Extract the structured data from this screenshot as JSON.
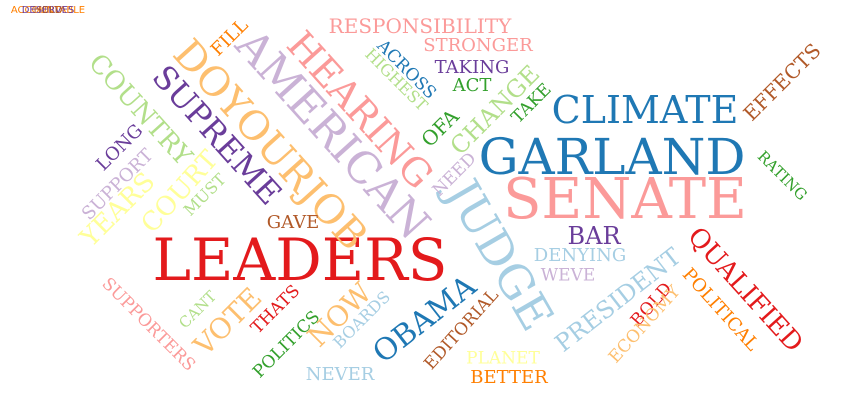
{
  "words": [
    {
      "text": "LEADERS",
      "color": "#e31a1c"
    },
    {
      "text": "SENATE",
      "color": "#fb9a99"
    },
    {
      "text": "GARLAND",
      "color": "#1f78b4"
    },
    {
      "text": "JUDGE",
      "color": "#a6cee3"
    },
    {
      "text": "AMERICAN",
      "color": "#cab2d6"
    },
    {
      "text": "DOYOURJOB",
      "color": "#fdbf6f"
    },
    {
      "text": "CLIMATE",
      "color": "#1f78b4"
    },
    {
      "text": "HEARING",
      "color": "#fb9a99"
    },
    {
      "text": "SUPREME",
      "color": "#6a3d9a"
    },
    {
      "text": "OBAMA",
      "color": "#1f78b4"
    },
    {
      "text": "PRESIDENT",
      "color": "#a6cee3"
    },
    {
      "text": "QUALIFIED",
      "color": "#e31a1c"
    },
    {
      "text": "CHANGE",
      "color": "#b2df8a"
    },
    {
      "text": "COUNTRY",
      "color": "#b2df8a"
    },
    {
      "text": "COURT",
      "color": "#ffff99"
    },
    {
      "text": "VOTE",
      "color": "#fdbf6f"
    },
    {
      "text": "NOW",
      "color": "#fdbf6f"
    },
    {
      "text": "YEARS",
      "color": "#ffff99"
    },
    {
      "text": "BAR",
      "color": "#6a3d9a"
    },
    {
      "text": "POLITICAL",
      "color": "#ff7f00"
    },
    {
      "text": "EFFECTS",
      "color": "#b15928"
    },
    {
      "text": "RESPONSIBILITY",
      "color": "#fb9a99"
    },
    {
      "text": "STRONGER",
      "color": "#fb9a99"
    },
    {
      "text": "ACROSS",
      "color": "#1f78b4"
    },
    {
      "text": "HIGHEST",
      "color": "#b2df8a"
    },
    {
      "text": "TAKING",
      "color": "#6a3d9a"
    },
    {
      "text": "ACT",
      "color": "#33a02c"
    },
    {
      "text": "OFA",
      "color": "#33a02c"
    },
    {
      "text": "TAKE",
      "color": "#33a02c"
    },
    {
      "text": "FILL",
      "color": "#ff7f00"
    },
    {
      "text": "NEED",
      "color": "#cab2d6"
    },
    {
      "text": "LONG",
      "color": "#6a3d9a"
    },
    {
      "text": "SUPPORT",
      "color": "#cab2d6"
    },
    {
      "text": "MUST",
      "color": "#b2df8a"
    },
    {
      "text": "GAVE",
      "color": "#b15928"
    },
    {
      "text": "DENYING",
      "color": "#a6cee3"
    },
    {
      "text": "WEVE",
      "color": "#cab2d6"
    },
    {
      "text": "RATING",
      "color": "#33a02c"
    },
    {
      "text": "BOLD",
      "color": "#e31a1c"
    },
    {
      "text": "ECONOMY",
      "color": "#fdbf6f"
    },
    {
      "text": "EDITORIAL",
      "color": "#b15928"
    },
    {
      "text": "BOARDS",
      "color": "#a6cee3"
    },
    {
      "text": "SUPPORTERS",
      "color": "#fb9a99"
    },
    {
      "text": "CANT",
      "color": "#b2df8a"
    },
    {
      "text": "THATS",
      "color": "#e31a1c"
    },
    {
      "text": "POLITICS",
      "color": "#33a02c"
    },
    {
      "text": "NEVER",
      "color": "#a6cee3"
    },
    {
      "text": "PLANET",
      "color": "#ffff99"
    },
    {
      "text": "BETTER",
      "color": "#ff7f00"
    },
    {
      "text": "ACCOUNTABLE",
      "color": "#ff7f00"
    },
    {
      "text": "DESERVES",
      "color": "#6a3d9a"
    },
    {
      "text": "HOLD",
      "color": "#b15928"
    }
  ]
}
